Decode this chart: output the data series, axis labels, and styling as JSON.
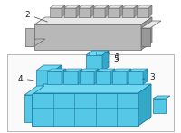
{
  "bg_color": "#ffffff",
  "blue": "#55c8e8",
  "blue_dark": "#35a8c8",
  "blue_top": "#70d8f0",
  "gray_light": "#d8d8d8",
  "gray_mid": "#b8b8b8",
  "gray_dark": "#989898",
  "gray_top": "#e8e8e8",
  "outline": "#1878a0",
  "gray_outline": "#666666",
  "label_color": "#222222",
  "font_size": 6.5,
  "fig_width": 2.0,
  "fig_height": 1.47,
  "dpi": 100
}
